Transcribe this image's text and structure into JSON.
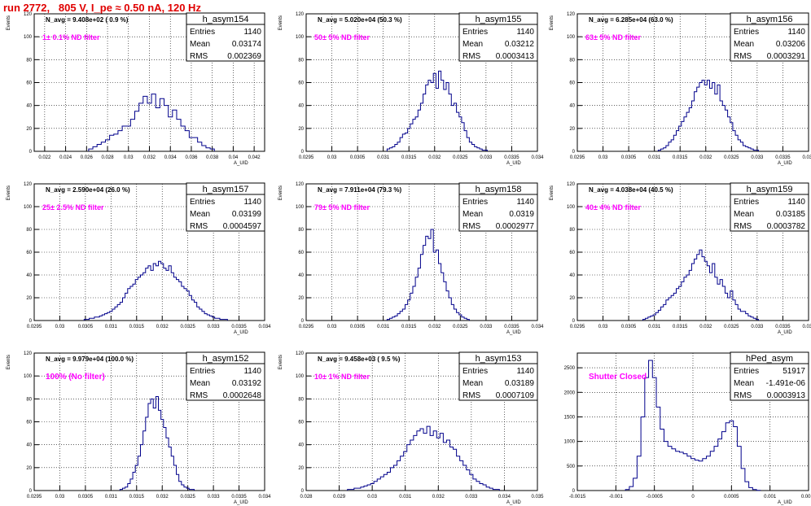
{
  "title": "run 2772,   805 V, I_pe ≈ 0.50 nA, 120 Hz",
  "colors": {
    "hist": "#00008b",
    "note": "#ff00ff",
    "title": "#e00000"
  },
  "chart_data": [
    {
      "type": "histogram",
      "name": "h_asym154",
      "stats": {
        "Entries": "1140",
        "Mean": "0.03174",
        "RMS": "0.002369"
      },
      "navg": "N_avg = 9.408e+02 ( 0.9 %)",
      "note": "1± 0.1% ND filter",
      "xlim": [
        0.021,
        0.043
      ],
      "ylim": [
        0,
        120
      ],
      "ylabel": "Events",
      "xlabel": "A_UID",
      "xticks": [
        "0.022",
        "0.024",
        "0.026",
        "0.028",
        "0.03",
        "0.032",
        "0.034",
        "0.036",
        "0.038",
        "0.04",
        "0.042"
      ],
      "yticks": [
        "0",
        "20",
        "40",
        "60",
        "80",
        "100",
        "120"
      ],
      "x": [
        0.0264,
        0.0268,
        0.0272,
        0.0276,
        0.028,
        0.0284,
        0.0288,
        0.0292,
        0.0296,
        0.03,
        0.0304,
        0.0308,
        0.0312,
        0.0316,
        0.032,
        0.0324,
        0.0328,
        0.0332,
        0.0336,
        0.034,
        0.0344,
        0.0348,
        0.0352,
        0.0356,
        0.036,
        0.0364,
        0.0368,
        0.0372,
        0.0376,
        0.038
      ],
      "values": [
        2,
        4,
        6,
        8,
        10,
        14,
        15,
        18,
        22,
        22,
        28,
        35,
        42,
        48,
        42,
        50,
        38,
        46,
        40,
        30,
        36,
        28,
        22,
        18,
        12,
        12,
        8,
        5,
        3,
        2
      ]
    },
    {
      "type": "histogram",
      "name": "h_asym155",
      "stats": {
        "Entries": "1140",
        "Mean": "0.03212",
        "RMS": "0.0003413"
      },
      "navg": "N_avg = 5.020e+04 (50.3 %)",
      "note": "50± 5% ND filter",
      "xlim": [
        0.0295,
        0.034
      ],
      "ylim": [
        0,
        120
      ],
      "ylabel": "Events",
      "xlabel": "A_UID",
      "xticks": [
        "0.0295",
        "0.03",
        "0.0305",
        "0.031",
        "0.0315",
        "0.032",
        "0.0325",
        "0.033",
        "0.0335",
        "0.034"
      ],
      "yticks": [
        "0",
        "20",
        "40",
        "60",
        "80",
        "100",
        "120"
      ],
      "x": [
        0.0311,
        0.03115,
        0.0312,
        0.03125,
        0.0313,
        0.03135,
        0.0314,
        0.03145,
        0.0315,
        0.03155,
        0.0316,
        0.03165,
        0.0317,
        0.03175,
        0.0318,
        0.03185,
        0.0319,
        0.03195,
        0.032,
        0.03205,
        0.0321,
        0.03215,
        0.0322,
        0.03225,
        0.0323,
        0.03235,
        0.0324,
        0.03245,
        0.0325,
        0.03255,
        0.0326,
        0.03265,
        0.0327,
        0.03275,
        0.0328,
        0.03285,
        0.0329,
        0.03295,
        0.033
      ],
      "values": [
        2,
        3,
        4,
        6,
        8,
        12,
        15,
        16,
        20,
        24,
        28,
        30,
        36,
        42,
        50,
        58,
        62,
        60,
        68,
        55,
        70,
        62,
        54,
        60,
        50,
        40,
        42,
        34,
        30,
        25,
        18,
        12,
        8,
        6,
        4,
        3,
        2,
        1,
        1
      ]
    },
    {
      "type": "histogram",
      "name": "h_asym156",
      "stats": {
        "Entries": "1140",
        "Mean": "0.03206",
        "RMS": "0.0003291"
      },
      "navg": "N_avg = 6.285e+04 (63.0 %)",
      "note": "63± 5% ND filter",
      "xlim": [
        0.0295,
        0.034
      ],
      "ylim": [
        0,
        120
      ],
      "ylabel": "Events",
      "xlabel": "A_UID",
      "xticks": [
        "0.0295",
        "0.03",
        "0.0305",
        "0.031",
        "0.0315",
        "0.032",
        "0.0325",
        "0.033",
        "0.0335",
        "0.034"
      ],
      "yticks": [
        "0",
        "20",
        "40",
        "60",
        "80",
        "100",
        "120"
      ],
      "x": [
        0.0311,
        0.03115,
        0.0312,
        0.03125,
        0.0313,
        0.03135,
        0.0314,
        0.03145,
        0.0315,
        0.03155,
        0.0316,
        0.03165,
        0.0317,
        0.03175,
        0.0318,
        0.03185,
        0.0319,
        0.03195,
        0.032,
        0.03205,
        0.0321,
        0.03215,
        0.0322,
        0.03225,
        0.0323,
        0.03235,
        0.0324,
        0.03245,
        0.0325,
        0.03255,
        0.0326,
        0.03265,
        0.0327,
        0.03275,
        0.0328,
        0.03285,
        0.0329,
        0.03295,
        0.033
      ],
      "values": [
        1,
        2,
        3,
        5,
        8,
        10,
        14,
        18,
        22,
        26,
        30,
        34,
        38,
        44,
        52,
        56,
        60,
        62,
        58,
        62,
        55,
        60,
        50,
        58,
        44,
        40,
        36,
        30,
        25,
        18,
        14,
        10,
        8,
        5,
        4,
        3,
        2,
        1,
        1
      ]
    },
    {
      "type": "histogram",
      "name": "h_asym157",
      "stats": {
        "Entries": "1140",
        "Mean": "0.03199",
        "RMS": "0.0004597"
      },
      "navg": "N_avg = 2.590e+04 (26.0 %)",
      "note": "25± 2.5% ND filter",
      "xlim": [
        0.0295,
        0.034
      ],
      "ylim": [
        0,
        120
      ],
      "ylabel": "Events",
      "xlabel": "A_UID",
      "xticks": [
        "0.0295",
        "0.03",
        "0.0305",
        "0.031",
        "0.0315",
        "0.032",
        "0.0325",
        "0.033",
        "0.0335",
        "0.034"
      ],
      "yticks": [
        "0",
        "20",
        "40",
        "60",
        "80",
        "100",
        "120"
      ],
      "x": [
        0.0305,
        0.03055,
        0.0306,
        0.03065,
        0.0307,
        0.03075,
        0.0308,
        0.03085,
        0.0309,
        0.03095,
        0.031,
        0.03105,
        0.0311,
        0.03115,
        0.0312,
        0.03125,
        0.0313,
        0.03135,
        0.0314,
        0.03145,
        0.0315,
        0.03155,
        0.0316,
        0.03165,
        0.0317,
        0.03175,
        0.0318,
        0.03185,
        0.0319,
        0.03195,
        0.032,
        0.03205,
        0.0321,
        0.03215,
        0.0322,
        0.03225,
        0.0323,
        0.03235,
        0.0324,
        0.03245,
        0.0325,
        0.03255,
        0.0326,
        0.03265,
        0.0327,
        0.03275,
        0.0328,
        0.03285,
        0.0329,
        0.03295,
        0.033,
        0.03305,
        0.0331,
        0.03315,
        0.0332,
        0.03325
      ],
      "values": [
        1,
        1,
        2,
        2,
        3,
        3,
        4,
        5,
        6,
        7,
        8,
        10,
        12,
        14,
        16,
        20,
        24,
        28,
        30,
        32,
        36,
        38,
        40,
        42,
        46,
        48,
        44,
        50,
        48,
        52,
        50,
        46,
        44,
        48,
        42,
        38,
        36,
        34,
        30,
        28,
        26,
        22,
        18,
        16,
        12,
        10,
        8,
        6,
        5,
        4,
        3,
        2,
        2,
        1,
        1,
        1
      ]
    },
    {
      "type": "histogram",
      "name": "h_asym158",
      "stats": {
        "Entries": "1140",
        "Mean": "0.0319",
        "RMS": "0.0002977"
      },
      "navg": "N_avg = 7.911e+04 (79.3 %)",
      "note": "79± 5% ND filter",
      "xlim": [
        0.0295,
        0.034
      ],
      "ylim": [
        0,
        120
      ],
      "ylabel": "Events",
      "xlabel": "A_UID",
      "xticks": [
        "0.0295",
        "0.03",
        "0.0305",
        "0.031",
        "0.0315",
        "0.032",
        "0.0325",
        "0.033",
        "0.0335",
        "0.034"
      ],
      "yticks": [
        "0",
        "20",
        "40",
        "60",
        "80",
        "100",
        "120"
      ],
      "x": [
        0.0311,
        0.03115,
        0.0312,
        0.03125,
        0.0313,
        0.03135,
        0.0314,
        0.03145,
        0.0315,
        0.03155,
        0.0316,
        0.03165,
        0.0317,
        0.03175,
        0.0318,
        0.03185,
        0.0319,
        0.03195,
        0.032,
        0.03205,
        0.0321,
        0.03215,
        0.0322,
        0.03225,
        0.0323,
        0.03235,
        0.0324,
        0.03245,
        0.0325,
        0.03255,
        0.0326,
        0.03265
      ],
      "values": [
        1,
        2,
        3,
        4,
        6,
        8,
        10,
        14,
        18,
        24,
        30,
        38,
        46,
        58,
        66,
        74,
        72,
        80,
        60,
        62,
        50,
        42,
        34,
        26,
        20,
        14,
        10,
        7,
        5,
        3,
        2,
        1
      ]
    },
    {
      "type": "histogram",
      "name": "h_asym159",
      "stats": {
        "Entries": "1140",
        "Mean": "0.03185",
        "RMS": "0.0003782"
      },
      "navg": "N_avg = 4.038e+04 (40.5 %)",
      "note": "40± 4% ND filter",
      "xlim": [
        0.0295,
        0.034
      ],
      "ylim": [
        0,
        120
      ],
      "ylabel": "Events",
      "xlabel": "A_UID",
      "xticks": [
        "0.0295",
        "0.03",
        "0.0305",
        "0.031",
        "0.0315",
        "0.032",
        "0.0325",
        "0.033",
        "0.0335",
        "0.034"
      ],
      "yticks": [
        "0",
        "20",
        "40",
        "60",
        "80",
        "100",
        "120"
      ],
      "x": [
        0.0308,
        0.03085,
        0.0309,
        0.03095,
        0.031,
        0.03105,
        0.0311,
        0.03115,
        0.0312,
        0.03125,
        0.0313,
        0.03135,
        0.0314,
        0.03145,
        0.0315,
        0.03155,
        0.0316,
        0.03165,
        0.0317,
        0.03175,
        0.0318,
        0.03185,
        0.0319,
        0.03195,
        0.032,
        0.03205,
        0.0321,
        0.03215,
        0.0322,
        0.03225,
        0.0323,
        0.03235,
        0.0324,
        0.03245,
        0.0325,
        0.03255,
        0.0326,
        0.03265,
        0.0327,
        0.03275,
        0.0328,
        0.03285,
        0.0329,
        0.03295,
        0.033
      ],
      "values": [
        1,
        2,
        3,
        4,
        5,
        7,
        9,
        12,
        14,
        18,
        20,
        22,
        24,
        28,
        30,
        34,
        38,
        40,
        44,
        50,
        54,
        58,
        62,
        56,
        52,
        48,
        42,
        50,
        38,
        32,
        36,
        30,
        24,
        20,
        26,
        18,
        14,
        10,
        8,
        8,
        6,
        4,
        3,
        2,
        1
      ]
    },
    {
      "type": "histogram",
      "name": "h_asym152",
      "stats": {
        "Entries": "1140",
        "Mean": "0.03192",
        "RMS": "0.0002648"
      },
      "navg": "N_avg = 9.979e+04 (100.0 %)",
      "note": "100% (No filter)",
      "xlim": [
        0.0295,
        0.034
      ],
      "ylim": [
        0,
        120
      ],
      "ylabel": "Events",
      "xlabel": "A_UID",
      "xticks": [
        "0.0295",
        "0.03",
        "0.0305",
        "0.031",
        "0.0315",
        "0.032",
        "0.0325",
        "0.033",
        "0.0335",
        "0.034"
      ],
      "yticks": [
        "0",
        "20",
        "40",
        "60",
        "80",
        "100",
        "120"
      ],
      "x": [
        0.0312,
        0.03125,
        0.0313,
        0.03135,
        0.0314,
        0.03145,
        0.0315,
        0.03155,
        0.0316,
        0.03165,
        0.0317,
        0.03175,
        0.0318,
        0.03185,
        0.0319,
        0.03195,
        0.032,
        0.03205,
        0.0321,
        0.03215,
        0.0322,
        0.03225,
        0.0323,
        0.03235,
        0.0324,
        0.03245,
        0.0325,
        0.03255,
        0.0326
      ],
      "values": [
        1,
        2,
        3,
        6,
        10,
        16,
        22,
        30,
        40,
        52,
        64,
        76,
        80,
        72,
        82,
        70,
        62,
        55,
        46,
        38,
        30,
        22,
        14,
        8,
        5,
        3,
        2,
        1,
        1
      ]
    },
    {
      "type": "histogram",
      "name": "h_asym153",
      "stats": {
        "Entries": "1140",
        "Mean": "0.03189",
        "RMS": "0.0007109"
      },
      "navg": "N_avg = 9.458e+03 ( 9.5 %)",
      "note": "10± 1% ND filter",
      "xlim": [
        0.028,
        0.035
      ],
      "ylim": [
        0,
        120
      ],
      "ylabel": "Events",
      "xlabel": "A_UID",
      "xticks": [
        "0.028",
        "0.029",
        "0.03",
        "0.031",
        "0.032",
        "0.033",
        "0.034",
        "0.035"
      ],
      "yticks": [
        "0",
        "20",
        "40",
        "60",
        "80",
        "100",
        "120"
      ],
      "x": [
        0.0293,
        0.0294,
        0.0295,
        0.0296,
        0.0297,
        0.0298,
        0.0299,
        0.03,
        0.0301,
        0.0302,
        0.0303,
        0.0304,
        0.0305,
        0.0306,
        0.0307,
        0.0308,
        0.0309,
        0.031,
        0.0311,
        0.0312,
        0.0313,
        0.0314,
        0.0315,
        0.0316,
        0.0317,
        0.0318,
        0.0319,
        0.032,
        0.0321,
        0.0322,
        0.0323,
        0.0324,
        0.0325,
        0.0326,
        0.0327,
        0.0328,
        0.0329,
        0.033,
        0.0331,
        0.0332,
        0.0333,
        0.0334,
        0.0335,
        0.0336,
        0.0337,
        0.0338
      ],
      "values": [
        1,
        1,
        2,
        2,
        3,
        4,
        5,
        6,
        8,
        10,
        12,
        14,
        16,
        20,
        22,
        26,
        30,
        34,
        40,
        44,
        48,
        52,
        54,
        50,
        56,
        48,
        52,
        46,
        50,
        42,
        44,
        38,
        36,
        30,
        26,
        22,
        18,
        14,
        10,
        8,
        6,
        5,
        3,
        2,
        1,
        1
      ]
    },
    {
      "type": "histogram",
      "name": "hPed_asym",
      "stats": {
        "Entries": "51917",
        "Mean": "-1.491e-06",
        "RMS": "0.0003913"
      },
      "navg": "",
      "note": "Shutter Closed",
      "xlim": [
        -0.0015,
        0.0015
      ],
      "ylim": [
        0,
        2800
      ],
      "ylabel": "",
      "xlabel": "A_UID",
      "xticks": [
        "-0.0015",
        "-0.001",
        "-0.0005",
        "0",
        "0.0005",
        "0.001",
        "0.0015"
      ],
      "yticks": [
        "0",
        "500",
        "1000",
        "1500",
        "2000",
        "2500"
      ],
      "x": [
        -0.00085,
        -0.0008,
        -0.00075,
        -0.0007,
        -0.00065,
        -0.0006,
        -0.00055,
        -0.0005,
        -0.00045,
        -0.0004,
        -0.00035,
        -0.0003,
        -0.00025,
        -0.0002,
        -0.00015,
        -0.0001,
        -5e-05,
        0,
        5e-05,
        0.0001,
        0.00015,
        0.0002,
        0.00025,
        0.0003,
        0.00035,
        0.0004,
        0.00045,
        0.0005,
        0.00055,
        0.0006,
        0.00065,
        0.0007,
        0.00075,
        0.0008,
        0.00085
      ],
      "values": [
        20,
        80,
        250,
        700,
        1500,
        2300,
        2650,
        2300,
        1700,
        1250,
        1000,
        900,
        850,
        800,
        780,
        750,
        700,
        650,
        620,
        600,
        650,
        700,
        800,
        900,
        1050,
        1200,
        1380,
        1420,
        1300,
        900,
        450,
        180,
        60,
        20,
        5
      ]
    }
  ]
}
